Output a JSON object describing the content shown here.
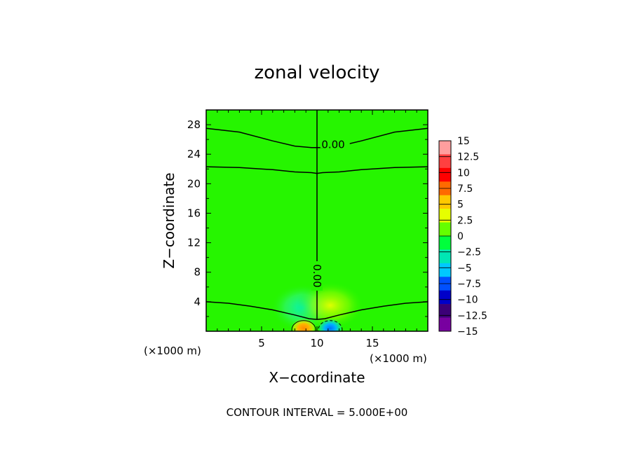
{
  "chart_data": {
    "type": "heatmap",
    "title": "zonal velocity",
    "xlabel": "X−coordinate",
    "ylabel": "Z−coordinate",
    "x_unit_label": "(×1000 m)",
    "x_unit_label_right": "(×1000 m)",
    "xlim": [
      0,
      20
    ],
    "ylim": [
      0,
      30
    ],
    "x_ticks": [
      5,
      10,
      15
    ],
    "y_ticks": [
      4,
      8,
      12,
      16,
      20,
      24,
      28
    ],
    "colorbar": {
      "levels": [
        15,
        12.5,
        10,
        7.5,
        5,
        2.5,
        0,
        -2.5,
        -5,
        -7.5,
        -10,
        -12.5,
        -15
      ],
      "labels": [
        "15",
        "12.5",
        "10",
        "7.5",
        "5",
        "2.5",
        "0",
        "−2.5",
        "−5",
        "−7.5",
        "−10",
        "−12.5",
        "−15"
      ],
      "colors": [
        "#ff9e9e",
        "#ff4040",
        "#ff0000",
        "#ff6a00",
        "#ffc800",
        "#e6ff00",
        "#64ff00",
        "#00ff3c",
        "#00e6b4",
        "#00c8ff",
        "#0050ff",
        "#0000c8",
        "#3c0078",
        "#7800a0"
      ]
    },
    "background_color": "#26f500",
    "contour_interval_text": "CONTOUR INTERVAL = 5.000E+00",
    "contour_labels": [
      "0.00",
      "0.00"
    ],
    "contours": [
      {
        "value": 0,
        "x": [
          0,
          3,
          6,
          8,
          9.5,
          10,
          10.5,
          12,
          14,
          17,
          20
        ],
        "z": [
          27.5,
          27.0,
          25.8,
          25.1,
          24.9,
          24.9,
          24.9,
          25.1,
          25.8,
          27.0,
          27.5
        ]
      },
      {
        "value": 0,
        "x": [
          0,
          3,
          6,
          8,
          9.5,
          10,
          10.5,
          12,
          14,
          17,
          20
        ],
        "z": [
          22.3,
          22.2,
          21.9,
          21.6,
          21.5,
          21.4,
          21.5,
          21.6,
          21.9,
          22.2,
          22.3
        ]
      },
      {
        "value": 0,
        "x": [
          0,
          2,
          4,
          6,
          8,
          9.3,
          10,
          10.7,
          12,
          14,
          16,
          18,
          20
        ],
        "z": [
          4.0,
          3.8,
          3.4,
          2.9,
          2.2,
          1.7,
          1.6,
          1.7,
          2.2,
          2.9,
          3.4,
          3.8,
          4.0
        ]
      },
      {
        "value": 0,
        "x": [
          10,
          10,
          10,
          10
        ],
        "z": [
          1.6,
          10,
          20,
          30
        ]
      }
    ],
    "anomalies": [
      {
        "x": 8.8,
        "z": 0.4,
        "value": 7.5,
        "line": "solid"
      },
      {
        "x": 11.2,
        "z": 0.4,
        "value": -6,
        "line": "dashed"
      },
      {
        "x": 11.2,
        "z": 3.5,
        "value": 3,
        "line": "none"
      },
      {
        "x": 8.7,
        "z": 3.2,
        "value": -3,
        "line": "none"
      }
    ]
  }
}
